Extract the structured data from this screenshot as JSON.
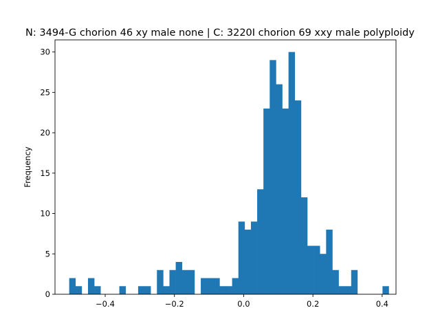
{
  "chart_data": {
    "type": "histogram",
    "title": "N: 3494-G chorion 46 xy male none | C: 3220I chorion 69 xxy male polyploidy",
    "xlabel": "",
    "ylabel": "Frequency",
    "xlim": [
      -0.545,
      0.44
    ],
    "ylim": [
      0,
      31.5
    ],
    "bar_color": "#1f77b4",
    "bin_start": -0.504,
    "bin_width": 0.0181,
    "values": [
      2,
      1,
      0,
      2,
      1,
      0,
      0,
      0,
      1,
      0,
      0,
      1,
      1,
      0,
      3,
      1,
      3,
      4,
      3,
      3,
      0,
      2,
      2,
      2,
      1,
      1,
      2,
      9,
      8,
      9,
      13,
      23,
      29,
      26,
      23,
      30,
      24,
      12,
      6,
      6,
      5,
      8,
      3,
      1,
      1,
      3,
      0,
      0,
      0,
      0,
      1
    ],
    "xticks": [
      -0.4,
      -0.2,
      0.0,
      0.2,
      0.4
    ],
    "xtick_labels": [
      "−0.4",
      "−0.2",
      "0.0",
      "0.2",
      "0.4"
    ],
    "yticks": [
      0,
      5,
      10,
      15,
      20,
      25,
      30
    ],
    "ytick_labels": [
      "0",
      "5",
      "10",
      "15",
      "20",
      "25",
      "30"
    ]
  }
}
